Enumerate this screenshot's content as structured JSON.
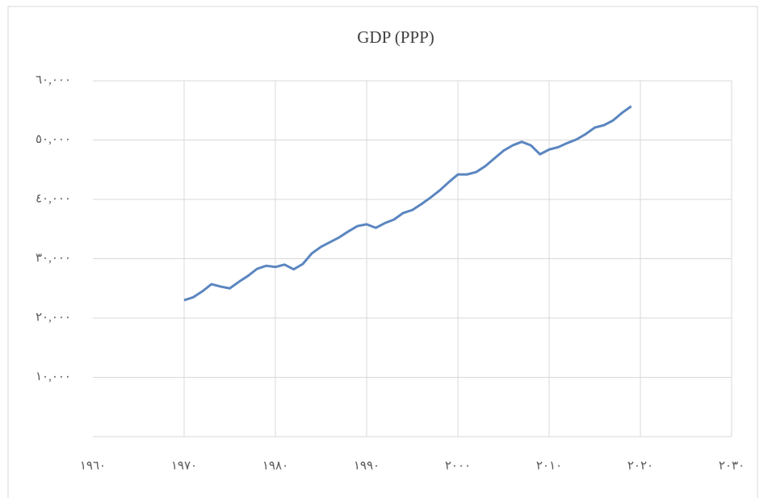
{
  "chart_data": {
    "type": "line",
    "title": "GDP (PPP)",
    "x": [
      1970,
      1971,
      1972,
      1973,
      1974,
      1975,
      1976,
      1977,
      1978,
      1979,
      1980,
      1981,
      1982,
      1983,
      1984,
      1985,
      1986,
      1987,
      1988,
      1989,
      1990,
      1991,
      1992,
      1993,
      1994,
      1995,
      1996,
      1997,
      1998,
      1999,
      2000,
      2001,
      2002,
      2003,
      2004,
      2005,
      2006,
      2007,
      2008,
      2009,
      2010,
      2011,
      2012,
      2013,
      2014,
      2015,
      2016,
      2017,
      2018,
      2019
    ],
    "series": [
      {
        "name": "GDP (PPP)",
        "color": "#5b86c0",
        "values": [
          23000,
          23500,
          24500,
          25700,
          25300,
          25000,
          26100,
          27100,
          28300,
          28800,
          28600,
          29000,
          28200,
          29100,
          30900,
          32000,
          32800,
          33600,
          34600,
          35500,
          35800,
          35200,
          36000,
          36600,
          37700,
          38200,
          39200,
          40300,
          41500,
          42900,
          44200,
          44200,
          44600,
          45600,
          46900,
          48200,
          49100,
          49700,
          49100,
          47600,
          48400,
          48800,
          49500,
          50100,
          51000,
          52100,
          52500,
          53300,
          54600,
          55700
        ]
      }
    ],
    "xlim": [
      1960,
      2030
    ],
    "xticks": [
      {
        "value": 1960,
        "label": "١٩٦٠"
      },
      {
        "value": 1970,
        "label": "١٩٧٠"
      },
      {
        "value": 1980,
        "label": "١٩٨٠"
      },
      {
        "value": 1990,
        "label": "١٩٩٠"
      },
      {
        "value": 2000,
        "label": "٢٠٠٠"
      },
      {
        "value": 2010,
        "label": "٢٠١٠"
      },
      {
        "value": 2020,
        "label": "٢٠٢٠"
      },
      {
        "value": 2030,
        "label": "٢٠٣٠"
      }
    ],
    "ylim": [
      0,
      60000
    ],
    "yticks": [
      {
        "value": 10000,
        "label": "١٠,٠٠٠"
      },
      {
        "value": 20000,
        "label": "٢٠,٠٠٠"
      },
      {
        "value": 30000,
        "label": "٣٠,٠٠٠"
      },
      {
        "value": 40000,
        "label": "٤٠,٠٠٠"
      },
      {
        "value": 50000,
        "label": "٥٠,٠٠٠"
      },
      {
        "value": 60000,
        "label": "٦٠,٠٠٠"
      }
    ],
    "grid": true
  }
}
